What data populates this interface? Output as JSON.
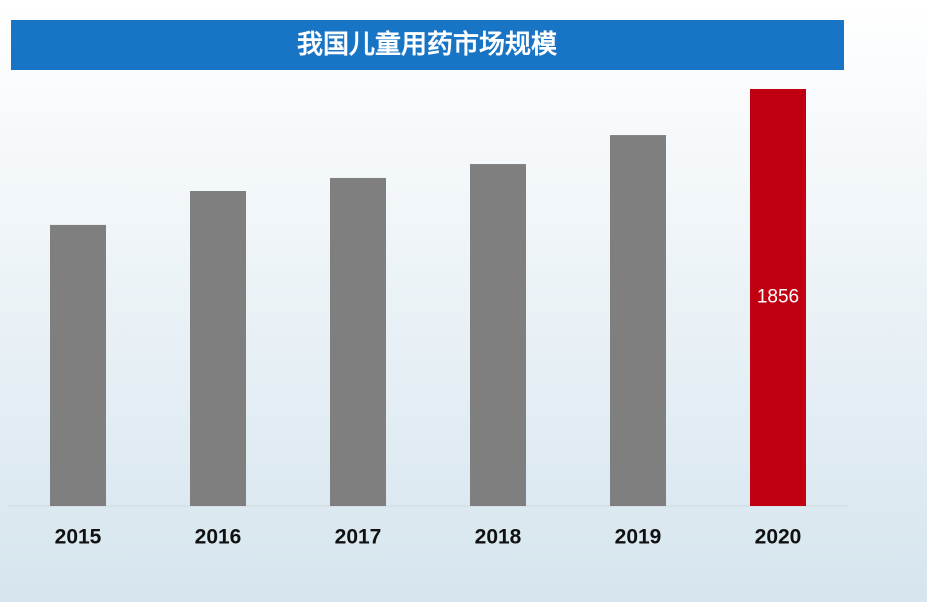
{
  "chart_data": {
    "type": "bar",
    "title": "我国儿童用药市场规模",
    "categories": [
      "2015",
      "2016",
      "2017",
      "2018",
      "2019",
      "2020"
    ],
    "values": [
      1251,
      1402,
      1460,
      1522,
      1651,
      1856
    ],
    "colors": [
      "#7f7f7f",
      "#7f7f7f",
      "#7f7f7f",
      "#7f7f7f",
      "#7f7f7f",
      "#c00010"
    ],
    "data_labels": [
      false,
      false,
      false,
      false,
      false,
      true
    ],
    "ylim": [
      0,
      1856
    ]
  }
}
